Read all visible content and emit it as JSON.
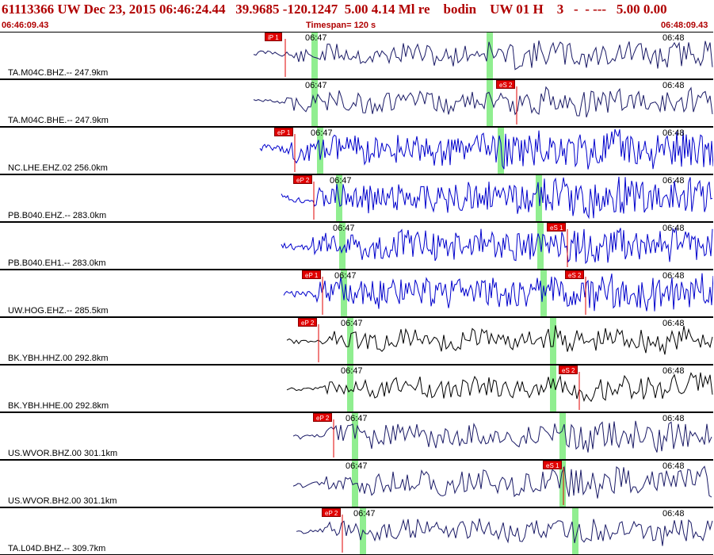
{
  "header": {
    "title": "61113366 UW Dec 23, 2015 06:46:24.44   39.9685 -120.1247  5.00 4.14 Ml re    bodin    UW 01 H    3   -  - ---   5.00 0.00",
    "start_time": "06:46:09.43",
    "timespan": "Timespan= 120 s",
    "end_time": "06:48:09.43"
  },
  "colors": {
    "title": "#b00000",
    "pick": "#e00000",
    "green": "#90ee90"
  },
  "time_ticks": {
    "left": "06:47",
    "right": "06:48"
  },
  "traces": [
    {
      "label": "TA.M04C.BHZ.-- 247.9km",
      "color": "#1a1a66",
      "start": 320,
      "p_pick": 360,
      "p_label": "iP 1",
      "s_pick": null,
      "s_label": null,
      "green": [
        393,
        614
      ],
      "style": "low"
    },
    {
      "label": "TA.M04C.BHE.-- 247.9km",
      "color": "#1a1a66",
      "start": 320,
      "p_pick": null,
      "p_label": null,
      "s_pick": 652,
      "s_label": "eS 2",
      "green": [
        393,
        614
      ],
      "style": "low"
    },
    {
      "label": "NC.LHE.EHZ.02 256.0km",
      "color": "#0000cc",
      "start": 328,
      "p_pick": 372,
      "p_label": "eP 1",
      "s_pick": null,
      "s_label": null,
      "green": [
        400,
        628
      ],
      "style": "high"
    },
    {
      "label": "PB.B040.EHZ.-- 283.0km",
      "color": "#0000cc",
      "start": 355,
      "p_pick": 396,
      "p_label": "eP 2",
      "s_pick": null,
      "s_label": null,
      "green": [
        424,
        676
      ],
      "style": "high"
    },
    {
      "label": "PB.B040.EH1.-- 283.0km",
      "color": "#0000cc",
      "start": 355,
      "p_pick": null,
      "p_label": null,
      "s_pick": 716,
      "s_label": "eS 1",
      "green": [
        428,
        678
      ],
      "style": "high"
    },
    {
      "label": "UW.HOG.EHZ.-- 285.5km",
      "color": "#0000cc",
      "start": 358,
      "p_pick": 407,
      "p_label": "eP 1",
      "s_pick": 739,
      "s_label": "eS 2",
      "green": [
        430,
        682
      ],
      "style": "high"
    },
    {
      "label": "BK.YBH.HHZ.00 292.8km",
      "color": "#000000",
      "start": 362,
      "p_pick": 402,
      "p_label": "eP 2",
      "s_pick": null,
      "s_label": null,
      "green": [
        438,
        694
      ],
      "style": "low"
    },
    {
      "label": "BK.YBH.HHE.00 292.8km",
      "color": "#000000",
      "start": 362,
      "p_pick": null,
      "p_label": null,
      "s_pick": 731,
      "s_label": "eS 2",
      "green": [
        438,
        694
      ],
      "style": "low"
    },
    {
      "label": "US.WVOR.BHZ.00 301.1km",
      "color": "#1a1a66",
      "start": 370,
      "p_pick": 421,
      "p_label": "eP 2",
      "s_pick": null,
      "s_label": null,
      "green": [
        444,
        706
      ],
      "style": "mid"
    },
    {
      "label": "US.WVOR.BH2.00 301.1km",
      "color": "#1a1a66",
      "start": 370,
      "p_pick": null,
      "p_label": null,
      "s_pick": 711,
      "s_label": "eS 1",
      "green": [
        444,
        706
      ],
      "style": "mid"
    },
    {
      "label": "TA.L04D.BHZ.-- 309.7km",
      "color": "#1a1a66",
      "start": 374,
      "p_pick": 432,
      "p_label": "eP 2",
      "s_pick": null,
      "s_label": null,
      "green": [
        454,
        722
      ],
      "style": "low"
    }
  ]
}
